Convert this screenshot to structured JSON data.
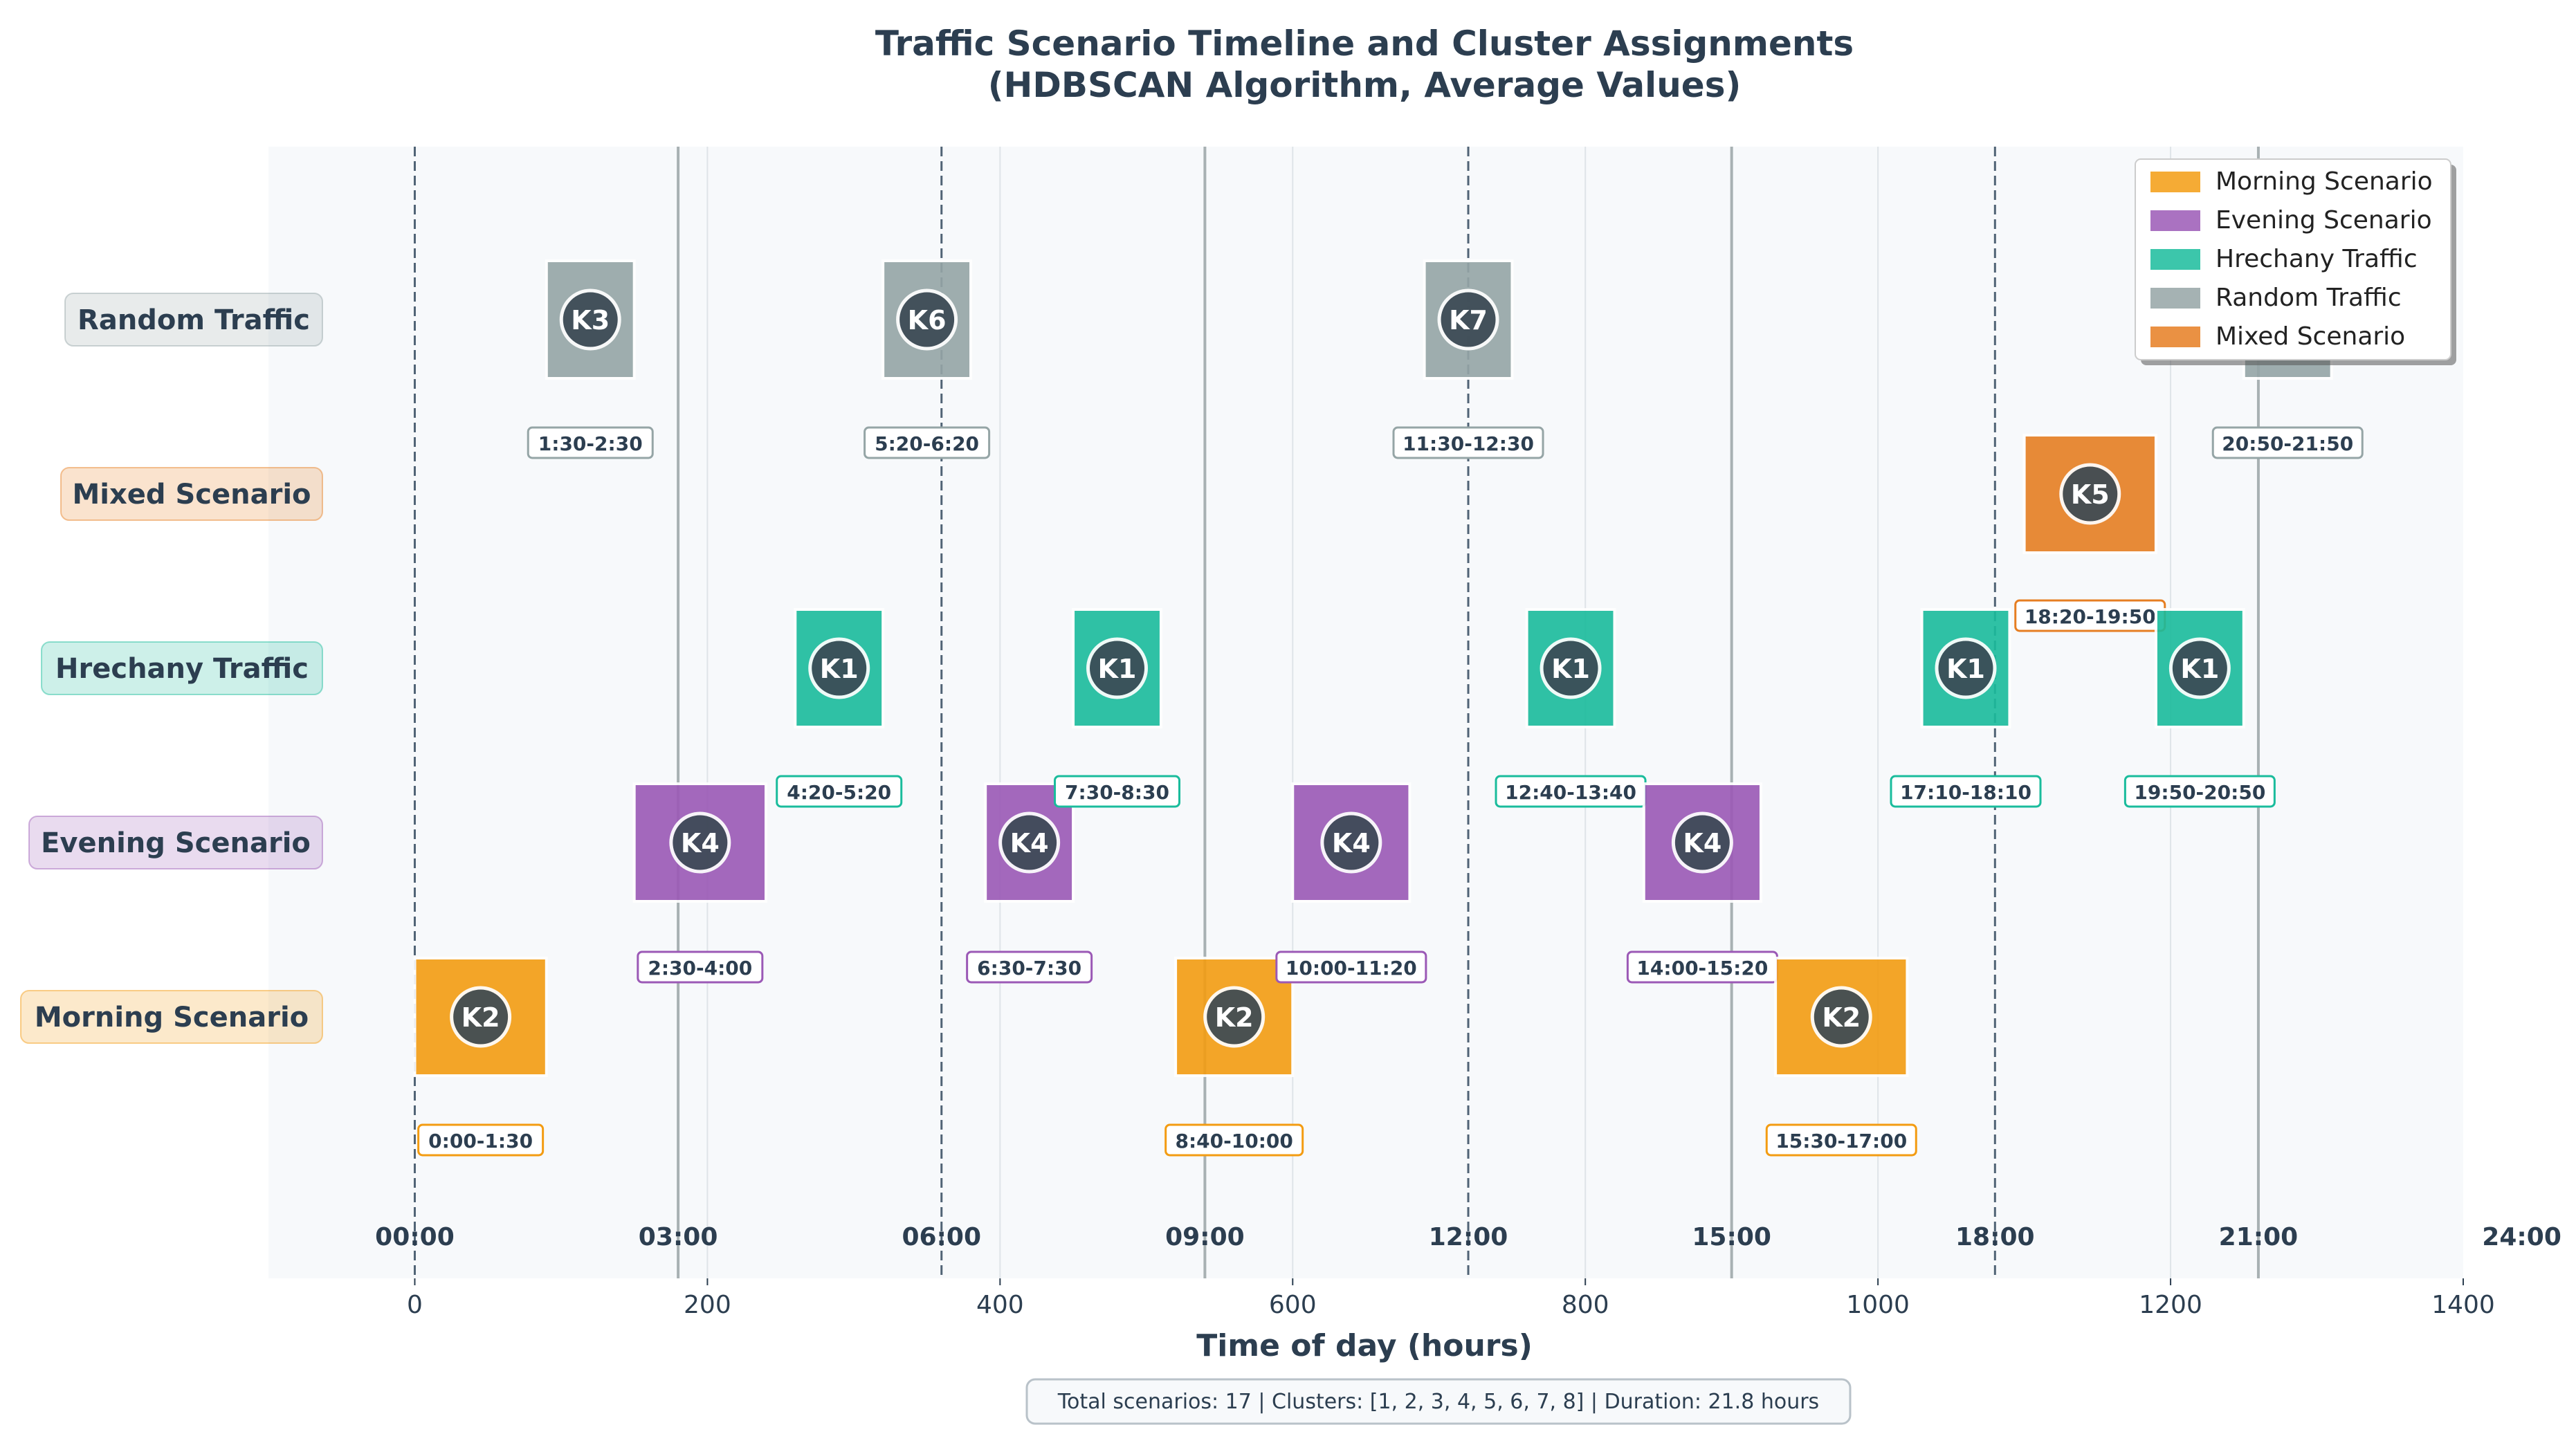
{
  "chart_data": {
    "type": "timeline",
    "title_line1": "Traffic Scenario Timeline and Cluster Assignments",
    "title_line2": "(HDBSCAN Algorithm, Average Values)",
    "xlabel": "Time of day (hours)",
    "xlim": [
      -100,
      1400
    ],
    "x_ticks": [
      0,
      200,
      400,
      600,
      800,
      1000,
      1200,
      1400
    ],
    "x_tick_labels": [
      "0",
      "200",
      "400",
      "600",
      "800",
      "1000",
      "1200",
      "1400"
    ],
    "hour_labels": [
      {
        "minute": 0,
        "label": "00:00"
      },
      {
        "minute": 180,
        "label": "03:00"
      },
      {
        "minute": 360,
        "label": "06:00"
      },
      {
        "minute": 540,
        "label": "09:00"
      },
      {
        "minute": 720,
        "label": "12:00"
      },
      {
        "minute": 900,
        "label": "15:00"
      },
      {
        "minute": 1080,
        "label": "18:00"
      },
      {
        "minute": 1260,
        "label": "21:00"
      },
      {
        "minute": 1440,
        "label": "24:00"
      }
    ],
    "dashed_lines": [
      0,
      360,
      720,
      1080
    ],
    "solid_lines": [
      180,
      540,
      900,
      1260
    ],
    "categories": [
      "Morning Scenario",
      "Evening Scenario",
      "Hrechany Traffic",
      "Random Traffic",
      "Mixed Scenario"
    ],
    "row_order_bottom_to_top": [
      "Morning Scenario",
      "Evening Scenario",
      "Hrechany Traffic",
      "Mixed Scenario",
      "Random Traffic"
    ],
    "colors": {
      "Morning Scenario": "#f39c12",
      "Evening Scenario": "#9b59b6",
      "Hrechany Traffic": "#1abc9c",
      "Random Traffic": "#95a5a6",
      "Mixed Scenario": "#e67e22"
    },
    "legend": {
      "position": "top-right",
      "entries": [
        "Morning Scenario",
        "Evening Scenario",
        "Hrechany Traffic",
        "Random Traffic",
        "Mixed Scenario"
      ]
    },
    "scenarios": [
      {
        "category": "Morning Scenario",
        "start": 0,
        "end": 90,
        "cluster": "K2",
        "label": "0:00-1:30"
      },
      {
        "category": "Random Traffic",
        "start": 90,
        "end": 150,
        "cluster": "K3",
        "label": "1:30-2:30"
      },
      {
        "category": "Evening Scenario",
        "start": 150,
        "end": 240,
        "cluster": "K4",
        "label": "2:30-4:00"
      },
      {
        "category": "Hrechany Traffic",
        "start": 260,
        "end": 320,
        "cluster": "K1",
        "label": "4:20-5:20"
      },
      {
        "category": "Random Traffic",
        "start": 320,
        "end": 380,
        "cluster": "K6",
        "label": "5:20-6:20"
      },
      {
        "category": "Evening Scenario",
        "start": 390,
        "end": 450,
        "cluster": "K4",
        "label": "6:30-7:30"
      },
      {
        "category": "Hrechany Traffic",
        "start": 450,
        "end": 510,
        "cluster": "K1",
        "label": "7:30-8:30"
      },
      {
        "category": "Morning Scenario",
        "start": 520,
        "end": 600,
        "cluster": "K2",
        "label": "8:40-10:00"
      },
      {
        "category": "Evening Scenario",
        "start": 600,
        "end": 680,
        "cluster": "K4",
        "label": "10:00-11:20"
      },
      {
        "category": "Random Traffic",
        "start": 690,
        "end": 750,
        "cluster": "K7",
        "label": "11:30-12:30"
      },
      {
        "category": "Hrechany Traffic",
        "start": 760,
        "end": 820,
        "cluster": "K1",
        "label": "12:40-13:40"
      },
      {
        "category": "Evening Scenario",
        "start": 840,
        "end": 920,
        "cluster": "K4",
        "label": "14:00-15:20"
      },
      {
        "category": "Morning Scenario",
        "start": 930,
        "end": 1020,
        "cluster": "K2",
        "label": "15:30-17:00"
      },
      {
        "category": "Hrechany Traffic",
        "start": 1030,
        "end": 1090,
        "cluster": "K1",
        "label": "17:10-18:10"
      },
      {
        "category": "Mixed Scenario",
        "start": 1100,
        "end": 1190,
        "cluster": "K5",
        "label": "18:20-19:50"
      },
      {
        "category": "Hrechany Traffic",
        "start": 1190,
        "end": 1250,
        "cluster": "K1",
        "label": "19:50-20:50"
      },
      {
        "category": "Random Traffic",
        "start": 1250,
        "end": 1310,
        "cluster": "",
        "label": "20:50-21:50"
      }
    ],
    "footer": "Total scenarios: 17 | Clusters: [1, 2, 3, 4, 5, 6, 7, 8] | Duration: 21.8 hours",
    "grid": true
  }
}
